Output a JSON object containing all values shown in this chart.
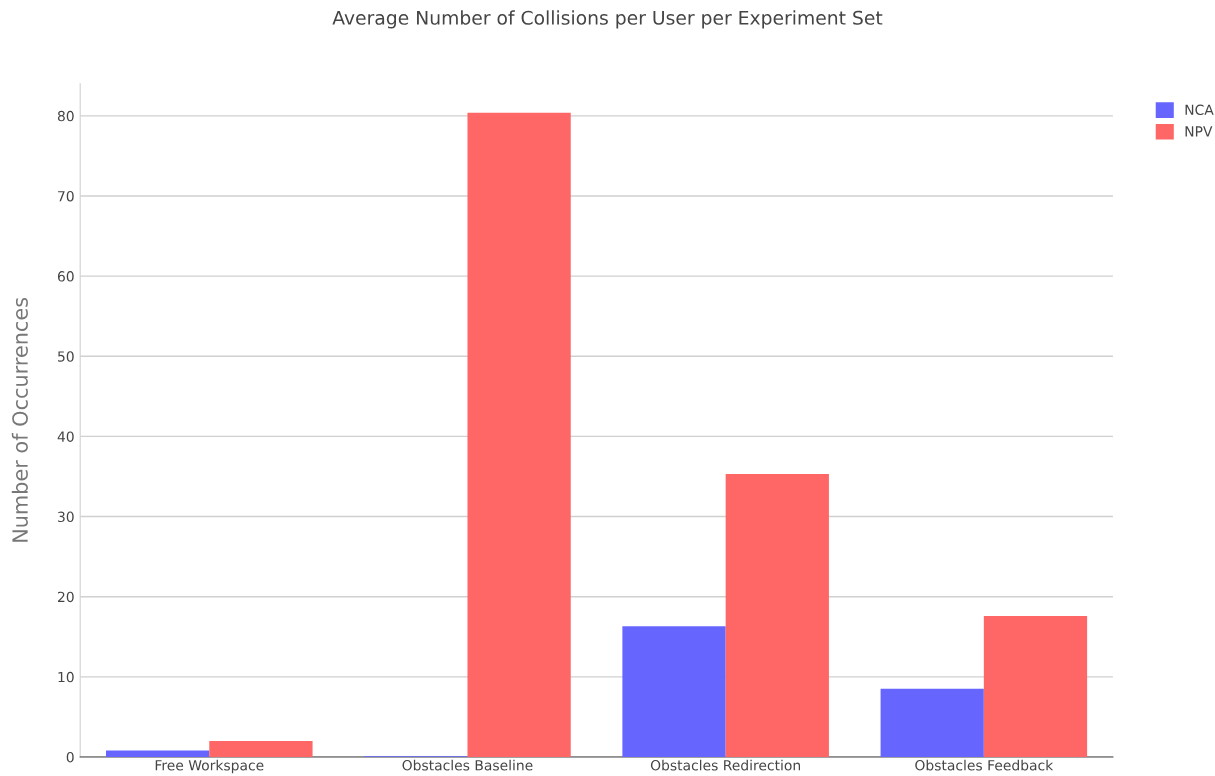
{
  "chart_data": {
    "type": "bar",
    "title": "Average Number of Collisions per User per Experiment Set",
    "ylabel": "Number of Occurrences",
    "categories": [
      "Free Workspace",
      "Obstacles Baseline",
      "Obstacles Redirection",
      "Obstacles Feedback"
    ],
    "series": [
      {
        "name": "NCA",
        "color": "#6666ff",
        "values": [
          0.8,
          0.1,
          16.3,
          8.5
        ]
      },
      {
        "name": "NPV",
        "color": "#ff6666",
        "values": [
          2.0,
          80.4,
          35.3,
          17.6
        ]
      }
    ],
    "ylim": [
      0,
      84
    ],
    "yticks": [
      0,
      10,
      20,
      30,
      40,
      50,
      60,
      70,
      80
    ],
    "grid": "y",
    "legend": "top right"
  }
}
